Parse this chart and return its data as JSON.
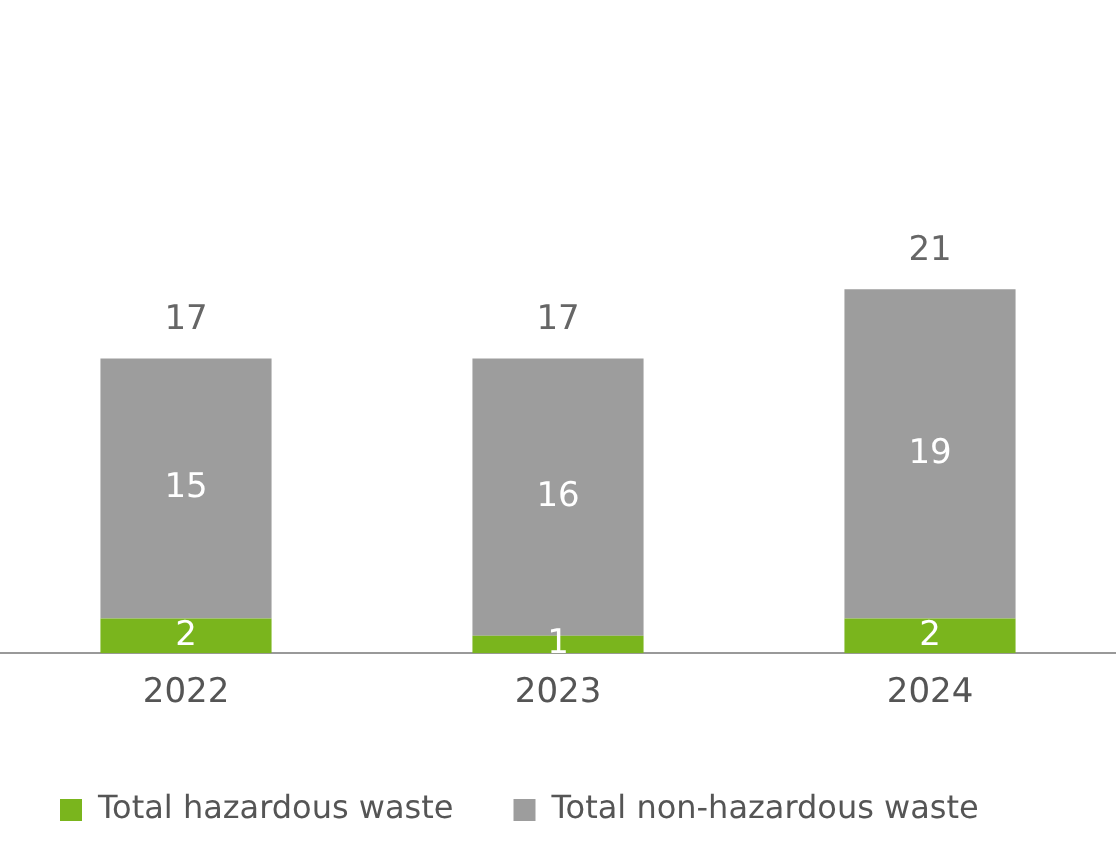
{
  "chart_data": {
    "type": "bar",
    "stacked": true,
    "categories": [
      "2022",
      "2023",
      "2024"
    ],
    "series": [
      {
        "name": "Total hazardous waste",
        "color": "#7ab51d",
        "values": [
          2,
          1,
          2
        ]
      },
      {
        "name": "Total non-hazardous waste",
        "color": "#9d9d9d",
        "values": [
          15,
          16,
          19
        ]
      }
    ],
    "data_labels": true,
    "totals": [
      "17",
      "17",
      "21"
    ],
    "grid": false,
    "legend": "bottom",
    "tick_labels": "x"
  }
}
